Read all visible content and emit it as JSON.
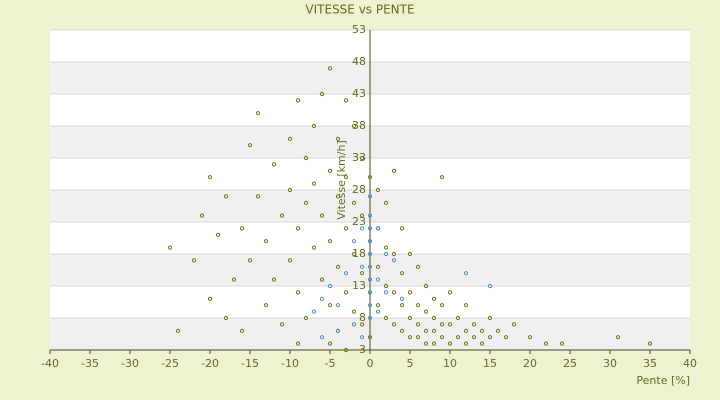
{
  "chart_data": {
    "type": "scatter",
    "title": "VITESSE vs PENTE",
    "x_label": "Pente [%]",
    "y_label": "Vitesse [km/h]",
    "xlim": [
      -40,
      40
    ],
    "xticks": [
      -40,
      -35,
      -30,
      -25,
      -20,
      -15,
      -10,
      -5,
      0,
      5,
      10,
      15,
      20,
      25,
      30,
      35,
      40
    ],
    "ylim": [
      3,
      53
    ],
    "yticks": [
      3,
      8,
      13,
      18,
      23,
      28,
      33,
      38,
      43,
      48,
      53
    ],
    "grid": true,
    "series": [
      {
        "color": "#6b7a10",
        "x": [
          -25,
          -24,
          -22,
          -21,
          -20,
          -20,
          -19,
          -18,
          -18,
          -17,
          -16,
          -16,
          -15,
          -15,
          -14,
          -14,
          -13,
          -13,
          -12,
          -12,
          -11,
          -11,
          -10,
          -10,
          -10,
          -9,
          -9,
          -9,
          -8,
          -8,
          -8,
          -7,
          -7,
          -7,
          -6,
          -6,
          -6,
          -5,
          -5,
          -5,
          -5,
          -4,
          -4,
          -4,
          -4,
          -3,
          -3,
          -3,
          -3,
          -2,
          -2,
          -2,
          -2,
          -1,
          -1,
          -1,
          -1,
          0,
          0,
          0,
          0,
          1,
          1,
          1,
          1,
          2,
          2,
          2,
          2,
          3,
          3,
          3,
          3,
          4,
          4,
          4,
          4,
          5,
          5,
          5,
          5,
          6,
          6,
          6,
          6,
          7,
          7,
          7,
          7,
          8,
          8,
          8,
          8,
          9,
          9,
          9,
          10,
          10,
          10,
          11,
          11,
          12,
          12,
          12,
          13,
          13,
          14,
          14,
          15,
          15,
          16,
          17,
          18,
          20,
          22,
          24,
          31,
          35,
          9,
          -9,
          -5,
          -3
        ],
        "values": [
          19,
          6,
          17,
          24,
          11,
          30,
          21,
          8,
          27,
          14,
          6,
          22,
          35,
          17,
          40,
          27,
          10,
          20,
          32,
          14,
          24,
          7,
          36,
          28,
          17,
          42,
          22,
          12,
          33,
          26,
          8,
          38,
          19,
          29,
          43,
          24,
          14,
          47,
          31,
          20,
          10,
          36,
          27,
          16,
          6,
          42,
          30,
          22,
          12,
          38,
          26,
          18,
          9,
          33,
          24,
          15,
          7,
          30,
          20,
          12,
          5,
          28,
          22,
          16,
          10,
          26,
          19,
          13,
          8,
          31,
          18,
          12,
          7,
          22,
          15,
          10,
          6,
          18,
          12,
          8,
          5,
          16,
          10,
          7,
          5,
          13,
          9,
          6,
          4,
          11,
          8,
          6,
          4,
          10,
          7,
          5,
          12,
          7,
          4,
          8,
          5,
          10,
          6,
          4,
          7,
          5,
          6,
          4,
          8,
          5,
          6,
          5,
          7,
          5,
          4,
          4,
          5,
          4,
          30,
          4,
          4,
          3
        ]
      },
      {
        "color": "#4a90d9",
        "x": [
          0,
          0,
          0,
          0,
          0,
          0,
          0,
          0,
          0,
          0,
          -1,
          1,
          -2,
          2,
          -1,
          1,
          -3,
          3,
          -5,
          -4,
          -6,
          -7,
          -2,
          2,
          4,
          12,
          15,
          -4,
          -6,
          -1,
          1
        ],
        "values": [
          27,
          24,
          22,
          20,
          18,
          16,
          14,
          12,
          10,
          8,
          22,
          22,
          20,
          18,
          16,
          14,
          15,
          17,
          13,
          10,
          11,
          9,
          7,
          12,
          11,
          15,
          13,
          6,
          5,
          5,
          9
        ]
      }
    ]
  }
}
